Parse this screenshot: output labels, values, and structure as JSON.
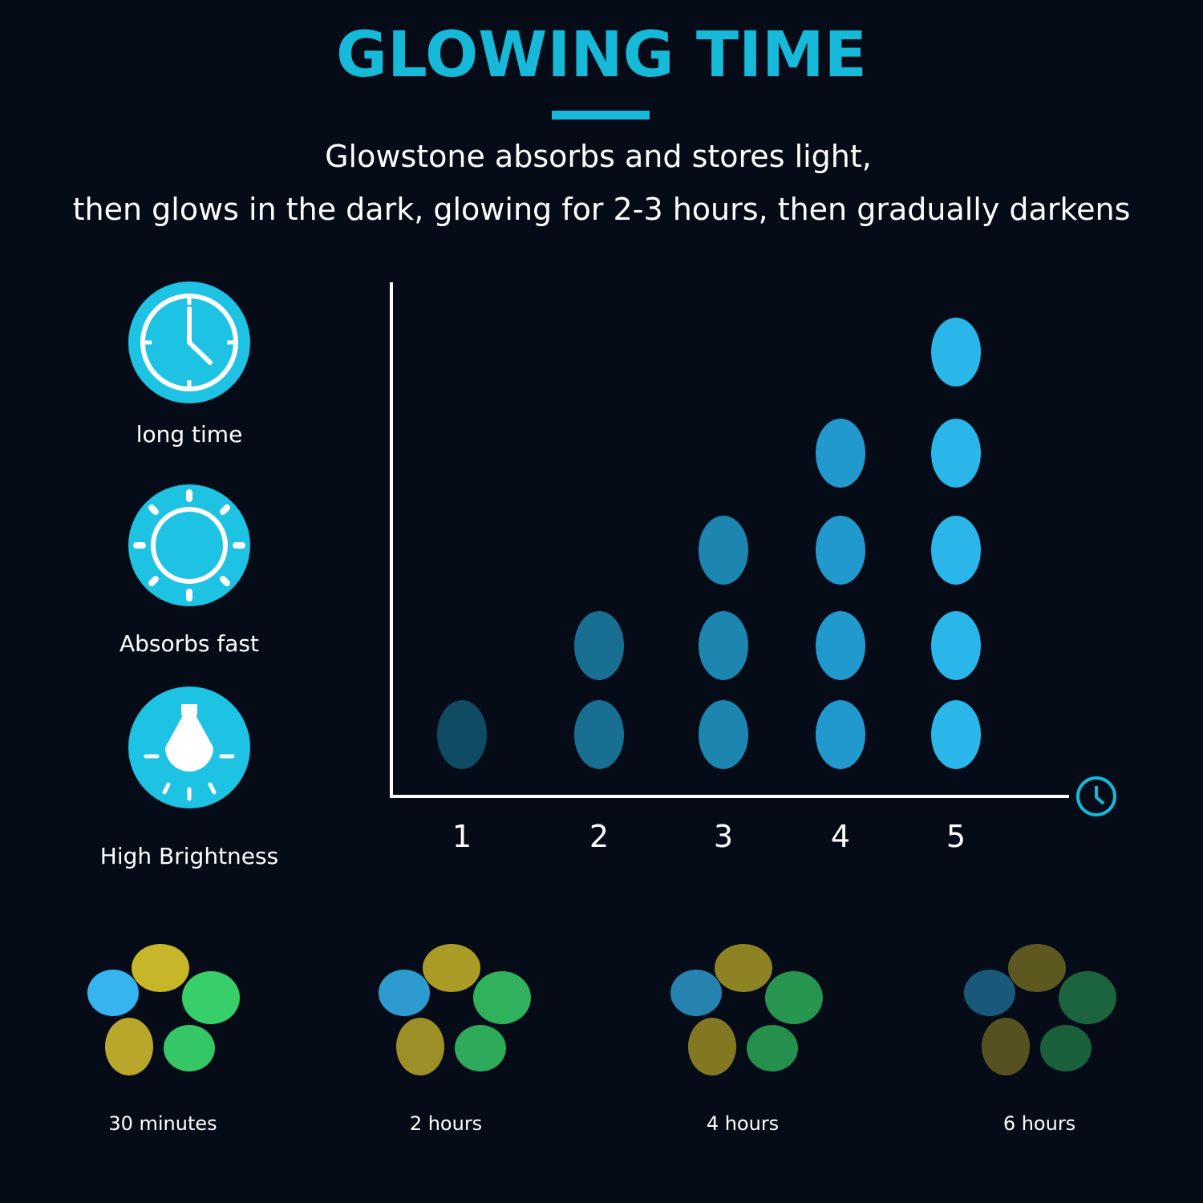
{
  "header": {
    "title": "GLOWING TIME",
    "subtitle_lines": [
      "Glowstone absorbs and stores light,",
      "then glows in the dark, glowing for 2-3 hours, then gradually darkens"
    ]
  },
  "features": [
    {
      "label": "long time"
    },
    {
      "label": "Absorbs fast"
    },
    {
      "label": "High Brightness"
    }
  ],
  "chart": {
    "columns": [
      1,
      2,
      3,
      4,
      5
    ]
  },
  "stages": [
    {
      "label": "30 minutes"
    },
    {
      "label": "2 hours"
    },
    {
      "label": "4 hours"
    },
    {
      "label": "6 hours"
    }
  ]
}
